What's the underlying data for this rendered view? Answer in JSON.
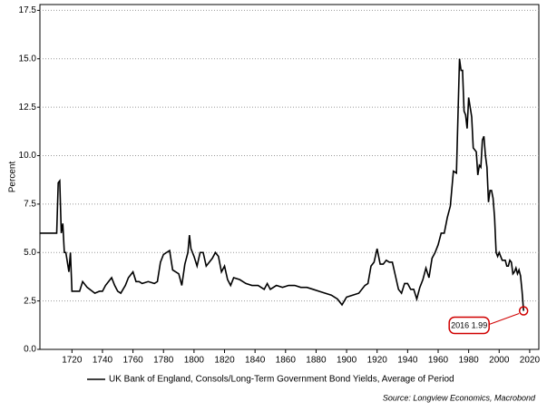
{
  "chart_data": {
    "type": "line",
    "y_label": "Percent",
    "xlim": [
      1699,
      2026
    ],
    "ylim": [
      0,
      17.8
    ],
    "xticks": [
      1720,
      1740,
      1760,
      1780,
      1800,
      1820,
      1840,
      1860,
      1880,
      1900,
      1920,
      1940,
      1960,
      1980,
      2000,
      2020
    ],
    "yticks": [
      {
        "value": 0,
        "label": "0.0"
      },
      2.5,
      {
        "value": 5,
        "label": "5.0"
      },
      7.5,
      {
        "value": 10,
        "label": "10.0"
      },
      12.5,
      {
        "value": 15,
        "label": "15.0"
      },
      17.5
    ],
    "grid": true,
    "x": [
      1699,
      1704,
      1708,
      1710,
      1711,
      1712,
      1713,
      1714,
      1715,
      1716,
      1717,
      1718,
      1719,
      1720,
      1725,
      1727,
      1730,
      1735,
      1738,
      1740,
      1742,
      1744,
      1746,
      1748,
      1750,
      1752,
      1755,
      1757,
      1760,
      1762,
      1764,
      1766,
      1770,
      1774,
      1776,
      1778,
      1780,
      1782,
      1784,
      1786,
      1790,
      1792,
      1794,
      1796,
      1797,
      1798,
      1800,
      1802,
      1804,
      1806,
      1808,
      1812,
      1814,
      1816,
      1818,
      1820,
      1822,
      1824,
      1826,
      1830,
      1834,
      1838,
      1842,
      1846,
      1848,
      1850,
      1854,
      1858,
      1862,
      1866,
      1870,
      1874,
      1878,
      1882,
      1886,
      1890,
      1894,
      1897,
      1900,
      1904,
      1908,
      1912,
      1914,
      1916,
      1918,
      1920,
      1922,
      1924,
      1926,
      1928,
      1930,
      1932,
      1934,
      1936,
      1938,
      1940,
      1942,
      1944,
      1946,
      1948,
      1950,
      1952,
      1954,
      1956,
      1958,
      1960,
      1962,
      1964,
      1966,
      1968,
      1970,
      1972,
      1974,
      1975,
      1976,
      1977,
      1978,
      1979,
      1980,
      1981,
      1982,
      1983,
      1984,
      1985,
      1986,
      1987,
      1988,
      1989,
      1990,
      1991,
      1992,
      1993,
      1994,
      1995,
      1996,
      1997,
      1998,
      1999,
      2000,
      2001,
      2002,
      2003,
      2004,
      2005,
      2006,
      2007,
      2008,
      2009,
      2010,
      2011,
      2012,
      2013,
      2014,
      2015,
      2016
    ],
    "series": [
      {
        "name": "UK Bank of England, Consols/Long-Term Government Bond Yields, Average of Period",
        "color": "#000000",
        "values": [
          6.0,
          6.0,
          6.0,
          6.0,
          8.6,
          8.7,
          6.0,
          6.5,
          5.0,
          5.0,
          4.5,
          4.0,
          5.0,
          3.0,
          3.0,
          3.5,
          3.2,
          2.9,
          3.0,
          3.0,
          3.3,
          3.5,
          3.7,
          3.3,
          3.0,
          2.9,
          3.3,
          3.7,
          4.0,
          3.5,
          3.5,
          3.4,
          3.5,
          3.4,
          3.5,
          4.5,
          4.9,
          5.0,
          5.1,
          4.1,
          3.9,
          3.3,
          4.4,
          5.0,
          5.9,
          5.2,
          4.8,
          4.3,
          5.0,
          5.0,
          4.3,
          4.7,
          5.0,
          4.8,
          4.0,
          4.3,
          3.6,
          3.3,
          3.7,
          3.6,
          3.4,
          3.3,
          3.3,
          3.1,
          3.4,
          3.1,
          3.3,
          3.2,
          3.3,
          3.3,
          3.2,
          3.2,
          3.1,
          3.0,
          2.9,
          2.8,
          2.6,
          2.3,
          2.7,
          2.8,
          2.9,
          3.3,
          3.4,
          4.3,
          4.5,
          5.2,
          4.4,
          4.4,
          4.6,
          4.5,
          4.5,
          3.8,
          3.1,
          2.9,
          3.4,
          3.4,
          3.1,
          3.1,
          2.6,
          3.2,
          3.6,
          4.2,
          3.7,
          4.7,
          5.0,
          5.4,
          6.0,
          6.0,
          6.8,
          7.4,
          9.2,
          9.1,
          15.0,
          14.4,
          14.4,
          12.3,
          12.1,
          11.4,
          13.0,
          12.5,
          12.0,
          10.4,
          10.3,
          10.2,
          9.0,
          9.5,
          9.4,
          10.8,
          11.0,
          10.0,
          9.4,
          7.6,
          8.2,
          8.2,
          7.8,
          6.8,
          5.0,
          4.8,
          5.0,
          4.8,
          4.6,
          4.6,
          4.6,
          4.3,
          4.3,
          4.6,
          4.5,
          3.9,
          4.0,
          4.2,
          3.9,
          4.1,
          3.8,
          3.0,
          1.99
        ]
      }
    ],
    "annotation": "2016 1.99",
    "source": "Source: Longview Economics, Macrobond"
  }
}
